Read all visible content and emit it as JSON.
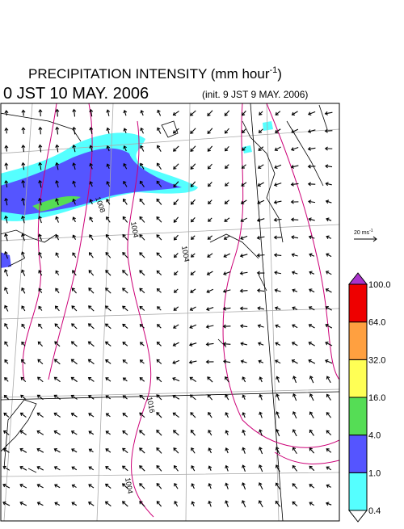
{
  "header": {
    "title": "PRECIPITATION INTENSITY (mm hour",
    "title_sup": "-1",
    "title_end": ")",
    "valid_time": "0 JST 10 MAY. 2006",
    "init_time": "(init. 9 JST 9 MAY. 2006)"
  },
  "wind_scale": {
    "label": "20 ms",
    "label_sup": "-1"
  },
  "contour_labels": [
    "1008",
    "1004",
    "1004",
    "1016",
    "1004"
  ],
  "colorbar": {
    "levels": [
      {
        "value": 0.4,
        "label": "0.4"
      },
      {
        "value": 1,
        "label": "1.0"
      },
      {
        "value": 4,
        "label": "4.0"
      },
      {
        "value": 16,
        "label": "16.0"
      },
      {
        "value": 32,
        "label": "32.0"
      },
      {
        "value": 64,
        "label": "64.0"
      },
      {
        "value": 100,
        "label": "100.0"
      }
    ],
    "colors": [
      "#55ffff",
      "#5555ff",
      "#55dd55",
      "#ffff55",
      "#ffa040",
      "#ee0000"
    ],
    "under_color": "#ffffff",
    "over_color": "#aa33cc"
  }
}
